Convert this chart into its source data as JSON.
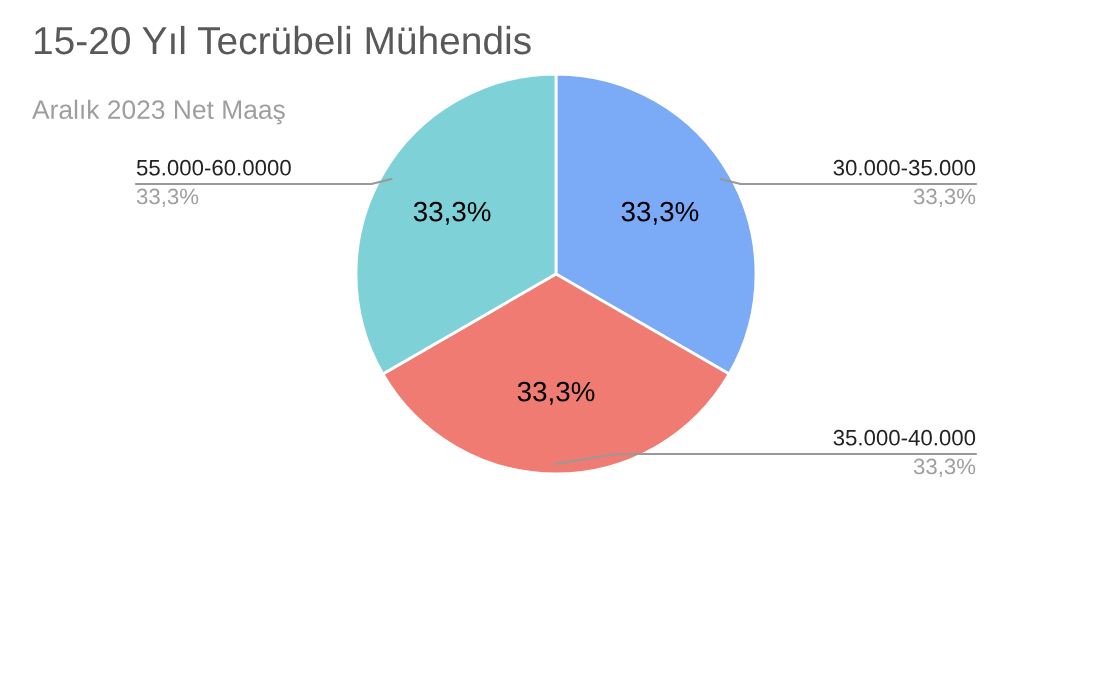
{
  "chart_data": {
    "type": "pie",
    "title": "15-20 Yıl Tecrübeli Mühendis",
    "subtitle": "Aralık 2023 Net Maaş",
    "categories": [
      "30.000-35.000",
      "35.000-40.000",
      "55.000-60.0000"
    ],
    "values": [
      33.3,
      33.3,
      33.3
    ],
    "value_labels": [
      "33,3%",
      "33,3%",
      "33,3%"
    ],
    "colors": [
      "#7baaf7",
      "#f07b72",
      "#7fd1d8"
    ],
    "legend": false
  }
}
